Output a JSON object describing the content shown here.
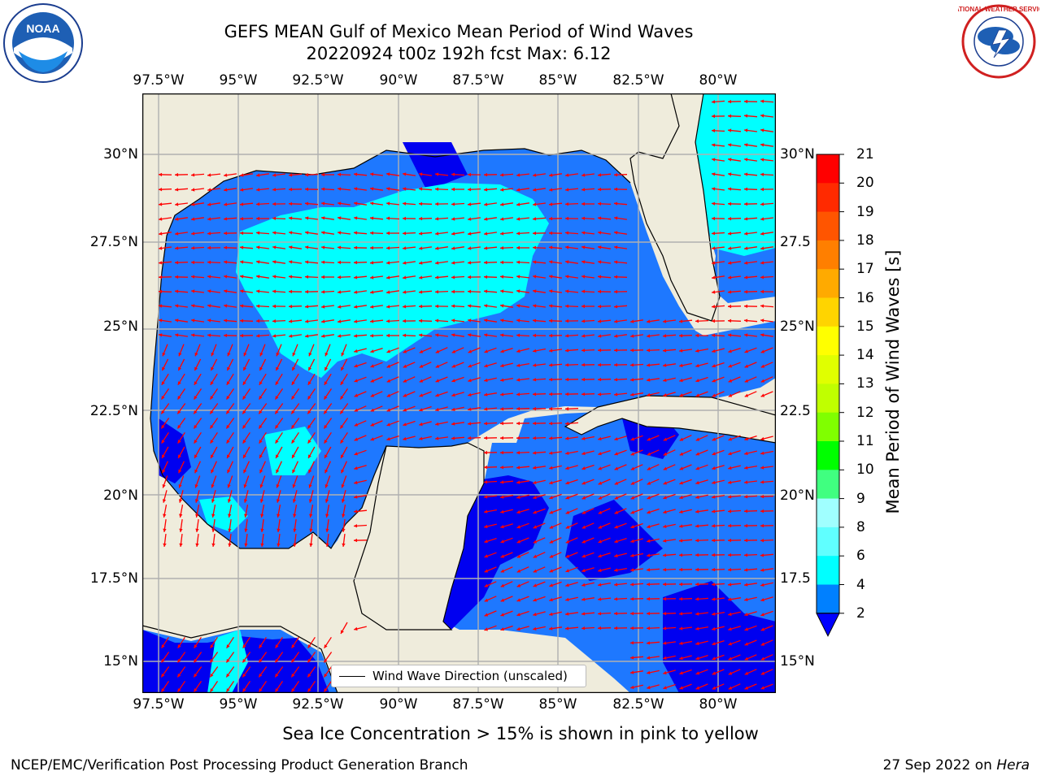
{
  "title_line1": "GEFS MEAN Gulf of Mexico Mean Period of Wind Waves",
  "title_line2": "20220924 t00z 192h fcst   Max: 6.12",
  "lon_labels": [
    "97.5°W",
    "95°W",
    "92.5°W",
    "90°W",
    "87.5°W",
    "85°W",
    "82.5°W",
    "80°W"
  ],
  "lat_labels_left": [
    "30°N",
    "27.5°N",
    "25°N",
    "22.5°N",
    "20°N",
    "17.5°N",
    "15°N"
  ],
  "lat_labels_right": [
    "30°N",
    "27.5",
    "25°N",
    "22.5",
    "20°N",
    "17.5",
    "15°N"
  ],
  "colorbar": {
    "label": "Mean Period of Wind Waves [s]",
    "ticks": [
      "21",
      "20",
      "19",
      "18",
      "17",
      "16",
      "15",
      "14",
      "13",
      "12",
      "11",
      "10",
      "9",
      "8",
      "6",
      "4",
      "2"
    ],
    "colors_top_to_bottom": [
      "#ff0000",
      "#ff2a00",
      "#ff5500",
      "#ff7f00",
      "#ffaa00",
      "#ffd400",
      "#ffff00",
      "#e0ff00",
      "#c0ff00",
      "#80ff00",
      "#00ff00",
      "#40ff80",
      "#a0ffff",
      "#60ffff",
      "#00ffff",
      "#0080ff"
    ],
    "extend_color": "#0000ff"
  },
  "legend_label": "Wind Wave Direction (unscaled)",
  "sea_ice_note": "Sea Ice Concentration > 15% is shown in pink to yellow",
  "footer_left": "NCEP/EMC/Verification Post Processing Product Generation Branch",
  "footer_date": "27 Sep 2022 on",
  "footer_machine": "Hera",
  "logos": {
    "left": "NOAA",
    "right": "NATIONAL WEATHER SERVICE"
  },
  "colors": {
    "land": "#efecdc",
    "water_mid": "#1e78ff",
    "water_low": "#0000f0",
    "water_high": "#00ffff",
    "arrows": "#ff0000",
    "grid": "#b0b0b0"
  }
}
